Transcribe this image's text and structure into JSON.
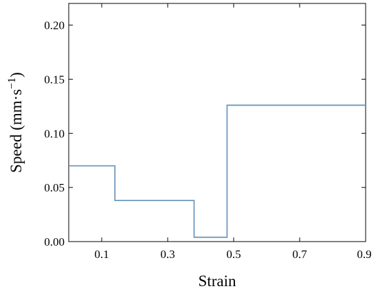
{
  "chart_data": {
    "type": "line",
    "step": true,
    "title": "",
    "xlabel": "Strain",
    "ylabel": "Speed (mm·s",
    "ylabel_superscript": "−1",
    "ylabel_close": ")",
    "xlim": [
      0,
      0.9
    ],
    "ylim": [
      0,
      0.22
    ],
    "xticks": [
      0.1,
      0.3,
      0.5,
      0.7,
      0.9
    ],
    "xtick_labels": [
      "0.1",
      "0.3",
      "0.5",
      "0.7",
      "0.9"
    ],
    "yticks": [
      0.0,
      0.05,
      0.1,
      0.15,
      0.2
    ],
    "ytick_labels": [
      "0.00",
      "0.05",
      "0.10",
      "0.15",
      "0.20"
    ],
    "grid": false,
    "legend": "none",
    "color": "#6f97be",
    "series": [
      {
        "x": [
          0,
          0.14,
          0.14,
          0.38,
          0.38,
          0.48,
          0.48,
          0.9
        ],
        "y": [
          0.07,
          0.07,
          0.038,
          0.038,
          0.004,
          0.004,
          0.126,
          0.126
        ]
      }
    ]
  }
}
